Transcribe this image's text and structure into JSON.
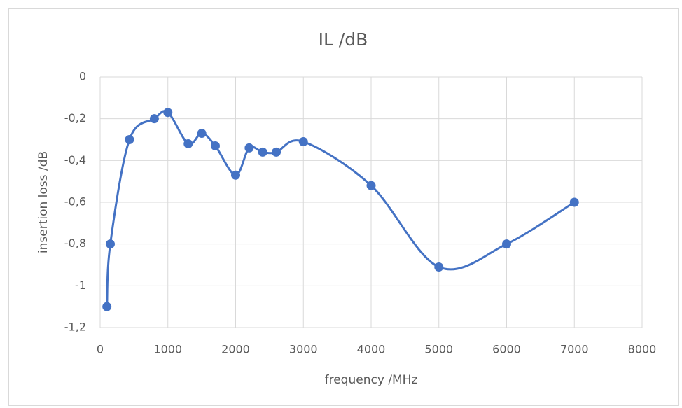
{
  "chart_data": {
    "type": "scatter",
    "title": "IL /dB",
    "x_label": "frequency /MHz",
    "y_label": "insertion loss /dB",
    "series": [
      {
        "color": "#4472c4",
        "x": [
          100,
          150,
          433,
          800,
          1000,
          1300,
          1500,
          1700,
          2000,
          2200,
          2400,
          2600,
          3000,
          4000,
          5000,
          6000,
          7000
        ],
        "values": [
          -1.1,
          -0.8,
          -0.3,
          -0.2,
          -0.17,
          -0.32,
          -0.27,
          -0.33,
          -0.47,
          -0.34,
          -0.36,
          -0.36,
          -0.31,
          -0.52,
          -0.91,
          -0.8,
          -0.6
        ]
      }
    ],
    "smooth": true,
    "xlim": [
      0,
      8000
    ],
    "xticks": [
      0,
      1000,
      2000,
      3000,
      4000,
      5000,
      6000,
      7000,
      8000
    ],
    "ylim": [
      -1.2,
      0
    ],
    "yticks": [
      0,
      {
        "value": -0.2,
        "label": "-0,2"
      },
      {
        "value": -0.4,
        "label": "-0,4"
      },
      {
        "value": -0.6,
        "label": "-0,6"
      },
      {
        "value": -0.8,
        "label": "-0,8"
      },
      -1,
      {
        "value": -1.2,
        "label": "-1,2"
      }
    ],
    "grid": true
  }
}
